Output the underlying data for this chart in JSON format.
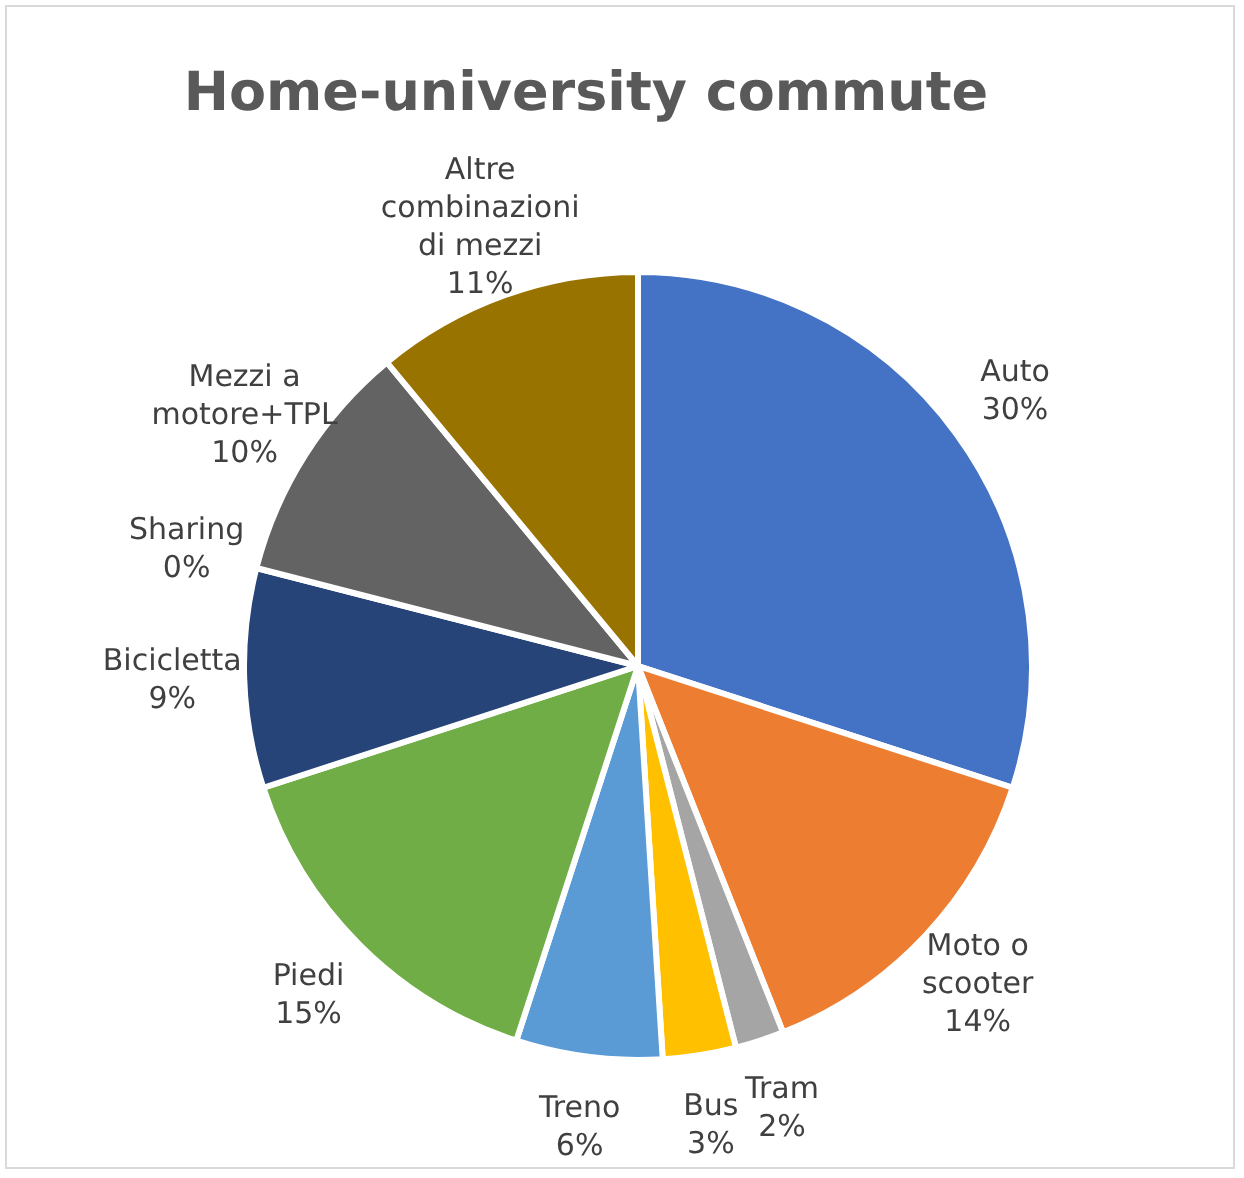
{
  "chart_data": {
    "type": "pie",
    "title": "Home-university commute",
    "categories": [
      "Auto",
      "Moto o scooter",
      "Tram",
      "Bus",
      "Treno",
      "Piedi",
      "Bicicletta",
      "Sharing",
      "Mezzi a motore+TPL",
      "Altre combinazioni di mezzi"
    ],
    "values": [
      30,
      14,
      2,
      3,
      6,
      15,
      9,
      0,
      10,
      11
    ],
    "value_labels": [
      "30%",
      "14%",
      "2%",
      "3%",
      "6%",
      "15%",
      "9%",
      "0%",
      "10%",
      "11%"
    ],
    "colors": [
      "#4472c4",
      "#ed7d31",
      "#a5a5a5",
      "#ffc000",
      "#5b9bd5",
      "#70ad47",
      "#264478",
      null,
      "#636363",
      "#997300"
    ]
  }
}
